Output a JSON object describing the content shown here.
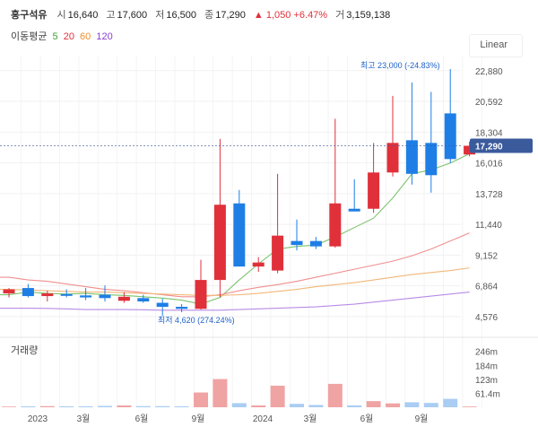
{
  "header": {
    "name": "흥구석유",
    "open_label": "시",
    "open": "16,640",
    "high_label": "고",
    "high": "17,600",
    "low_label": "저",
    "low": "16,500",
    "close_label": "종",
    "close": "17,290",
    "change": "▲ 1,050",
    "change_pct": "+6.47%",
    "volume_label": "거",
    "volume": "3,159,138"
  },
  "ma_legend": {
    "label": "이동평균",
    "items": [
      {
        "text": "5",
        "color": "#3fa535"
      },
      {
        "text": "20",
        "color": "#e0303a"
      },
      {
        "text": "60",
        "color": "#f0902a"
      },
      {
        "text": "120",
        "color": "#8a3fd1"
      }
    ]
  },
  "scale_mode": "Linear",
  "colors": {
    "up": "#e0303a",
    "down": "#1e7ee6",
    "up_vol": "#f0a3a3",
    "down_vol": "#a9cdf3",
    "current": "#3a5a9c"
  },
  "chart_data": {
    "type": "candlestick",
    "x_tick_labels": [
      "2023",
      "3월",
      "6월",
      "9월",
      "2024",
      "3월",
      "6월",
      "9월"
    ],
    "y_tick_labels": [
      "22,880",
      "20,592",
      "18,304",
      "16,016",
      "13,728",
      "11,440",
      "9,152",
      "6,864",
      "4,576"
    ],
    "y_ticks": [
      22880,
      20592,
      18304,
      16016,
      13728,
      11440,
      9152,
      6864,
      4576
    ],
    "ylim": [
      3700,
      24000
    ],
    "current_price": 17290,
    "current_price_label": "17,290",
    "high_annotation": "최고 23,000 (-24.83%)",
    "low_annotation": "최저 4,620 (274.24%)",
    "volume_label": "거래량",
    "volume_tick_labels": [
      "246m",
      "184m",
      "123m",
      "61.4m"
    ],
    "volume_ticks": [
      246,
      184,
      123,
      61.4
    ],
    "volume_max": 300,
    "candles": [
      {
        "o": 6300,
        "h": 6700,
        "l": 6000,
        "c": 6600
      },
      {
        "o": 6700,
        "h": 7000,
        "l": 6000,
        "c": 6100
      },
      {
        "o": 6100,
        "h": 6500,
        "l": 5700,
        "c": 6300
      },
      {
        "o": 6250,
        "h": 6600,
        "l": 6000,
        "c": 6150
      },
      {
        "o": 6150,
        "h": 6700,
        "l": 5800,
        "c": 6000
      },
      {
        "o": 6200,
        "h": 6900,
        "l": 5700,
        "c": 5950
      },
      {
        "o": 5750,
        "h": 6400,
        "l": 5600,
        "c": 6050
      },
      {
        "o": 5950,
        "h": 6200,
        "l": 5600,
        "c": 5700
      },
      {
        "o": 5600,
        "h": 5900,
        "l": 4620,
        "c": 5300
      },
      {
        "o": 5300,
        "h": 5500,
        "l": 4900,
        "c": 5150
      },
      {
        "o": 5150,
        "h": 8800,
        "l": 5100,
        "c": 7300
      },
      {
        "o": 7300,
        "h": 17800,
        "l": 6000,
        "c": 12900
      },
      {
        "o": 13000,
        "h": 14000,
        "l": 8400,
        "c": 8300
      },
      {
        "o": 8300,
        "h": 9000,
        "l": 7900,
        "c": 8600
      },
      {
        "o": 8000,
        "h": 15200,
        "l": 7800,
        "c": 10600
      },
      {
        "o": 10200,
        "h": 11800,
        "l": 9500,
        "c": 9900
      },
      {
        "o": 10200,
        "h": 10500,
        "l": 9600,
        "c": 9800
      },
      {
        "o": 9800,
        "h": 19300,
        "l": 9700,
        "c": 13000
      },
      {
        "o": 12600,
        "h": 14800,
        "l": 12500,
        "c": 12400
      },
      {
        "o": 12600,
        "h": 17500,
        "l": 12300,
        "c": 15300
      },
      {
        "o": 15300,
        "h": 21000,
        "l": 15000,
        "c": 17500
      },
      {
        "o": 17700,
        "h": 22000,
        "l": 14400,
        "c": 15200
      },
      {
        "o": 17500,
        "h": 21300,
        "l": 13800,
        "c": 15100
      },
      {
        "o": 19700,
        "h": 23000,
        "l": 16000,
        "c": 16300
      },
      {
        "o": 16640,
        "h": 17600,
        "l": 16500,
        "c": 17290
      }
    ],
    "volumes": [
      3,
      4,
      5,
      4,
      4,
      6,
      8,
      5,
      5,
      4,
      65,
      124,
      18,
      8,
      95,
      15,
      10,
      103,
      8,
      27,
      17,
      22,
      19,
      37,
      3.2
    ],
    "ma_series": [
      {
        "name": "5",
        "values": [
          6200,
          6400,
          6300,
          6250,
          6300,
          6200,
          6150,
          6050,
          5950,
          5800,
          5500,
          6000,
          7300,
          8500,
          9600,
          9800,
          9900,
          10500,
          11200,
          11900,
          13400,
          15200,
          15500,
          16000,
          16700
        ]
      },
      {
        "name": "20",
        "values": [
          7500,
          7300,
          7200,
          7000,
          6800,
          6600,
          6500,
          6350,
          6200,
          6050,
          6050,
          6200,
          6500,
          6750,
          6950,
          7200,
          7500,
          7800,
          8100,
          8400,
          8700,
          9100,
          9600,
          10200,
          10800
        ]
      },
      {
        "name": "60",
        "values": [
          6600,
          6550,
          6500,
          6450,
          6400,
          6400,
          6350,
          6300,
          6250,
          6200,
          6150,
          6150,
          6200,
          6300,
          6450,
          6600,
          6800,
          6950,
          7100,
          7300,
          7500,
          7700,
          7850,
          8000,
          8200
        ]
      },
      {
        "name": "120",
        "values": [
          5200,
          5200,
          5180,
          5150,
          5100,
          5100,
          5100,
          5080,
          5050,
          5050,
          5050,
          5050,
          5100,
          5150,
          5200,
          5250,
          5300,
          5400,
          5500,
          5650,
          5800,
          5950,
          6100,
          6250,
          6400
        ]
      }
    ]
  }
}
